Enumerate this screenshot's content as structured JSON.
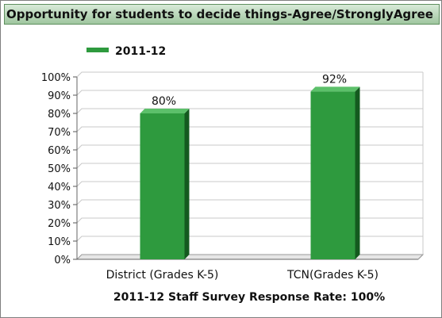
{
  "panel": {
    "title": "Opportunity for students to decide things-Agree/StronglyAgree"
  },
  "chart_data": {
    "type": "bar",
    "title": "Opportunity for students to decide things-Agree/StronglyAgree",
    "categories": [
      "District (Grades K-5)",
      "TCN(Grades K-5)"
    ],
    "series": [
      {
        "name": "2011-12",
        "values": [
          80,
          92
        ],
        "color": "#2e9a3e"
      }
    ],
    "data_labels": [
      "80%",
      "92%"
    ],
    "y_ticks": [
      "0%",
      "10%",
      "20%",
      "30%",
      "40%",
      "50%",
      "60%",
      "70%",
      "80%",
      "90%",
      "100%"
    ],
    "ylim": [
      0,
      100
    ],
    "xlabel": "2011-12 Staff Survey Response Rate: 100%",
    "ylabel": "",
    "grid": true,
    "legend": "top-left"
  }
}
